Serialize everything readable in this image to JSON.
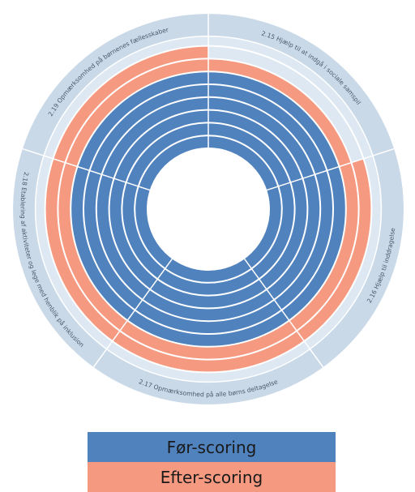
{
  "chart_data": {
    "type": "radial-bar",
    "categories": [
      "2.15 Hjælp til at indgå i sociale samspil",
      "2.16 Hjælp til inddragelse",
      "2.17 Opmærksomhed på alle børns deltagelse",
      "2.18 Etablering af aktiviteter og lege med henblik på inklusion",
      "2.19 Opmærksomhed på børnenes fællesskaber"
    ],
    "series": [
      {
        "name": "Før-scoring",
        "values": [
          6,
          6,
          6,
          6,
          6
        ]
      },
      {
        "name": "Efter-scoring",
        "values": [
          7,
          8,
          8,
          8,
          8
        ]
      }
    ],
    "rlim": [
      0,
      8
    ],
    "grid": true
  },
  "colors": {
    "before": "#5082be",
    "after": "#f59a80",
    "ring_outer": "#c9d9e8",
    "ring_inner": "#dde8f2",
    "gridline": "#ffffff",
    "label_text": "#4a5a6a"
  },
  "legend": {
    "items": [
      {
        "label": "Før-scoring"
      },
      {
        "label": "Efter-scoring"
      }
    ]
  }
}
